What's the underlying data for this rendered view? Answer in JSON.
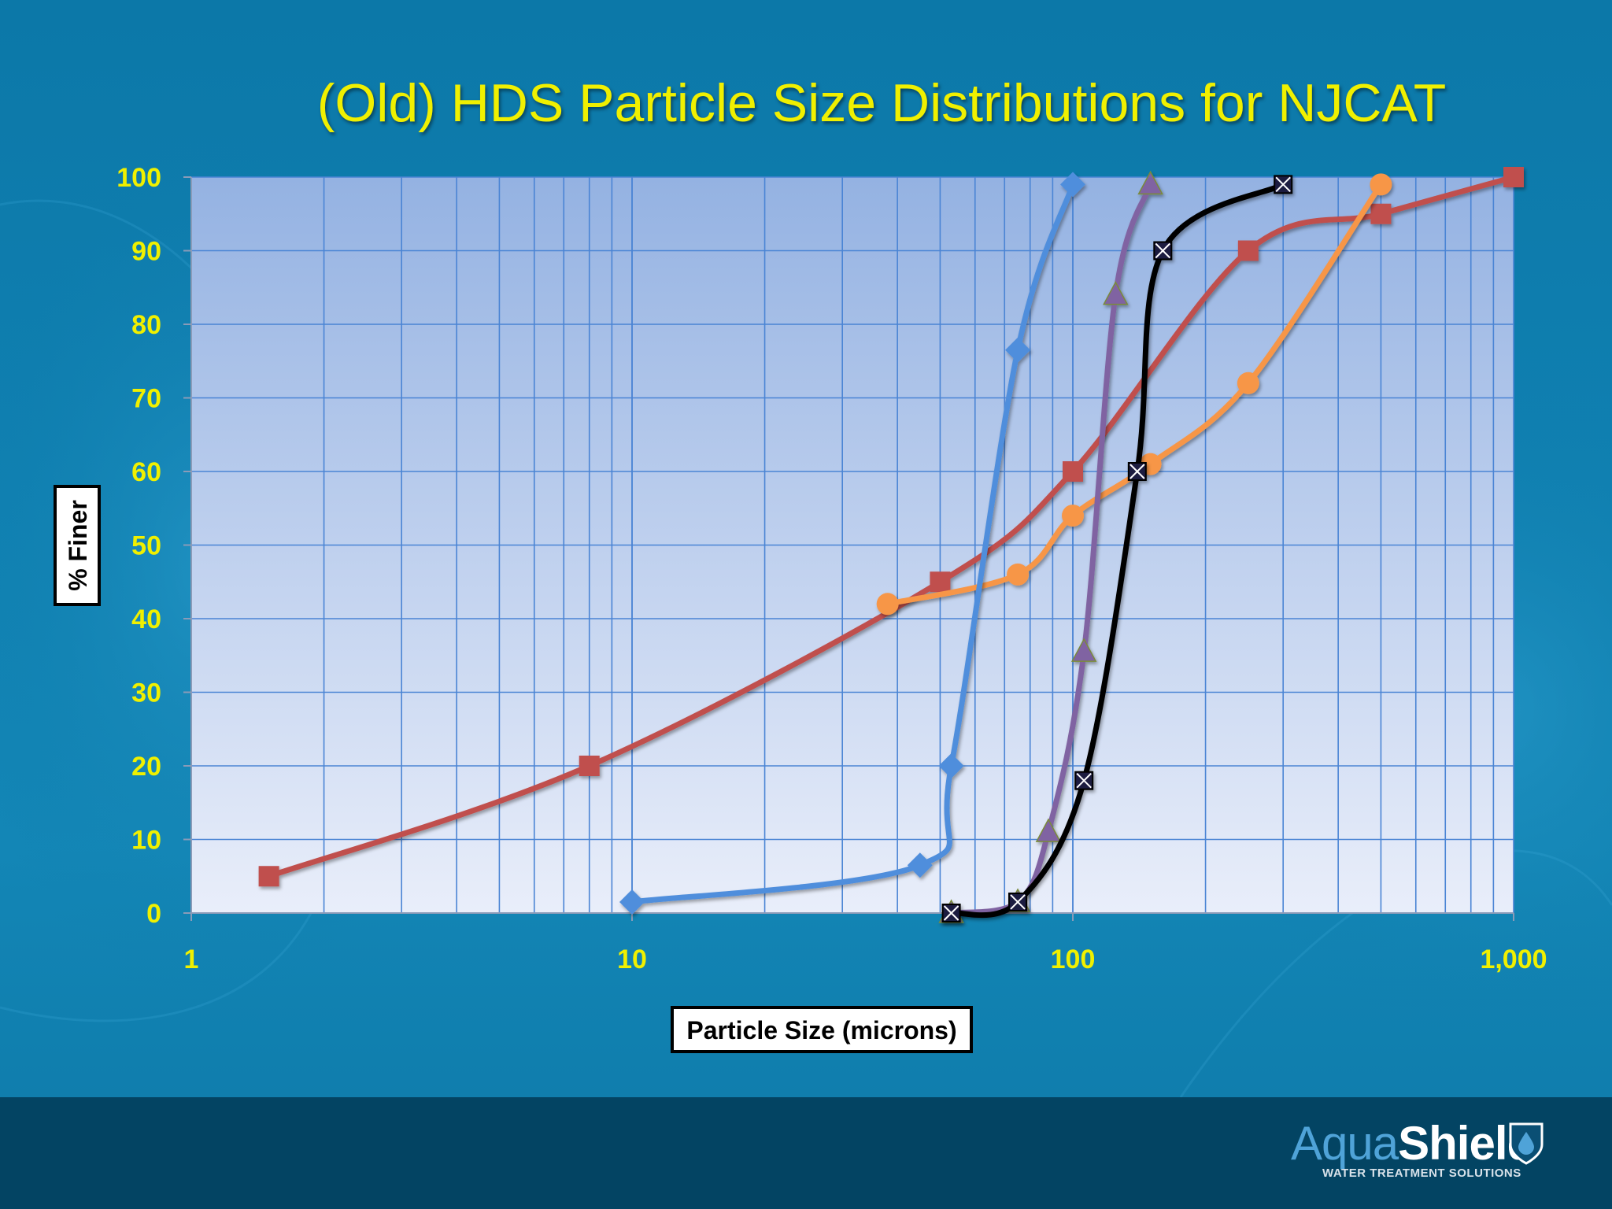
{
  "slide": {
    "title": "(Old) HDS Particle Size Distributions for NJCAT",
    "logo": {
      "word_part1": "Aqua",
      "word_part2": "Shield",
      "tagline": "WATER TREATMENT SOLUTIONS",
      "icon": "water-drop-shield-icon"
    }
  },
  "colors": {
    "axis_text": "#f0f000",
    "grid": "#4a84d4",
    "plot_top": "#94b2e2",
    "plot_bottom": "#e9eefa",
    "footer": "#034463"
  },
  "chart_data": {
    "type": "line",
    "title": "(Old) HDS Particle Size Distributions for NJCAT",
    "xlabel": "Particle Size (microns)",
    "ylabel": "% Finer",
    "xscale": "log",
    "xlim": [
      1,
      1000
    ],
    "ylim": [
      0,
      100
    ],
    "xticks": [
      1,
      10,
      100,
      1000
    ],
    "xtick_labels": [
      "1",
      "10",
      "100",
      "1,000"
    ],
    "yticks": [
      0,
      10,
      20,
      30,
      40,
      50,
      60,
      70,
      80,
      90,
      100
    ],
    "ytick_labels": [
      "0",
      "10",
      "20",
      "30",
      "40",
      "50",
      "60",
      "70",
      "80",
      "90",
      "100"
    ],
    "grid": true,
    "legend": "none",
    "series": [
      {
        "color": "#c0504d",
        "marker": "square",
        "points": [
          [
            1.5,
            5
          ],
          [
            8,
            20
          ],
          [
            50,
            45
          ],
          [
            100,
            60
          ],
          [
            250,
            90
          ],
          [
            500,
            95
          ],
          [
            1000,
            100
          ]
        ]
      },
      {
        "color": "#f79646",
        "marker": "circle",
        "points": [
          [
            38,
            42
          ],
          [
            75,
            46
          ],
          [
            100,
            54
          ],
          [
            150,
            61
          ],
          [
            250,
            72
          ],
          [
            500,
            99
          ]
        ]
      },
      {
        "color": "#4f8edc",
        "marker": "diamond",
        "points": [
          [
            10,
            1.5
          ],
          [
            45,
            6.5
          ],
          [
            53,
            20
          ],
          [
            75,
            76.5
          ],
          [
            100,
            99
          ]
        ]
      },
      {
        "color": "#8064a2",
        "marker": "triangle",
        "points": [
          [
            53,
            0
          ],
          [
            75,
            1.5
          ],
          [
            88,
            11
          ],
          [
            106,
            35.5
          ],
          [
            125,
            84
          ],
          [
            150,
            99
          ]
        ]
      },
      {
        "color": "#000000",
        "marker": "x-square",
        "points": [
          [
            53,
            0
          ],
          [
            75,
            1.5
          ],
          [
            106,
            18
          ],
          [
            140,
            60
          ],
          [
            160,
            90
          ],
          [
            300,
            99
          ]
        ]
      }
    ]
  }
}
